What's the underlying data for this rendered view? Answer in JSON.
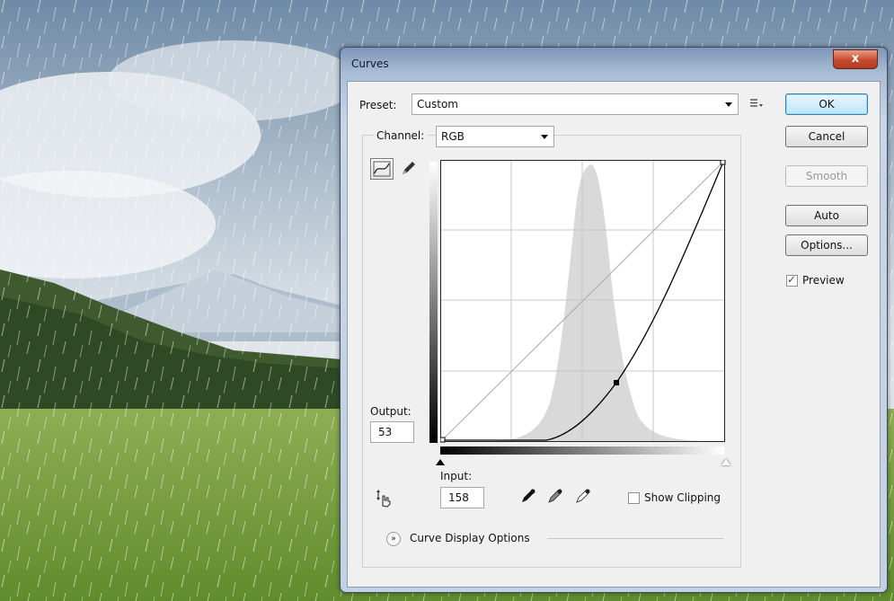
{
  "dialog": {
    "title": "Curves",
    "close_label": "x"
  },
  "preset": {
    "label": "Preset:",
    "value": "Custom"
  },
  "channel": {
    "label": "Channel:",
    "value": "RGB"
  },
  "buttons": {
    "ok": "OK",
    "cancel": "Cancel",
    "smooth": "Smooth",
    "auto": "Auto",
    "options": "Options..."
  },
  "preview": {
    "label": "Preview",
    "checked": true
  },
  "output": {
    "label": "Output:",
    "value": "53"
  },
  "input": {
    "label": "Input:",
    "value": "158"
  },
  "show_clipping": {
    "label": "Show Clipping",
    "checked": false
  },
  "curve_display_options": {
    "label": "Curve Display Options"
  },
  "icons": {
    "curve_tool": "curve-point-icon",
    "pencil_tool": "pencil-icon",
    "on_image_adjust": "hand-adjust-icon",
    "black_point": "eyedropper-black-icon",
    "gray_point": "eyedropper-gray-icon",
    "white_point": "eyedropper-white-icon",
    "preset_menu": "preset-menu-icon",
    "expand": "expand-chevron-icon"
  },
  "colors": {
    "close": "#c74a2e",
    "default_button": "#bee6fd",
    "histogram": "#d9d9d9"
  }
}
